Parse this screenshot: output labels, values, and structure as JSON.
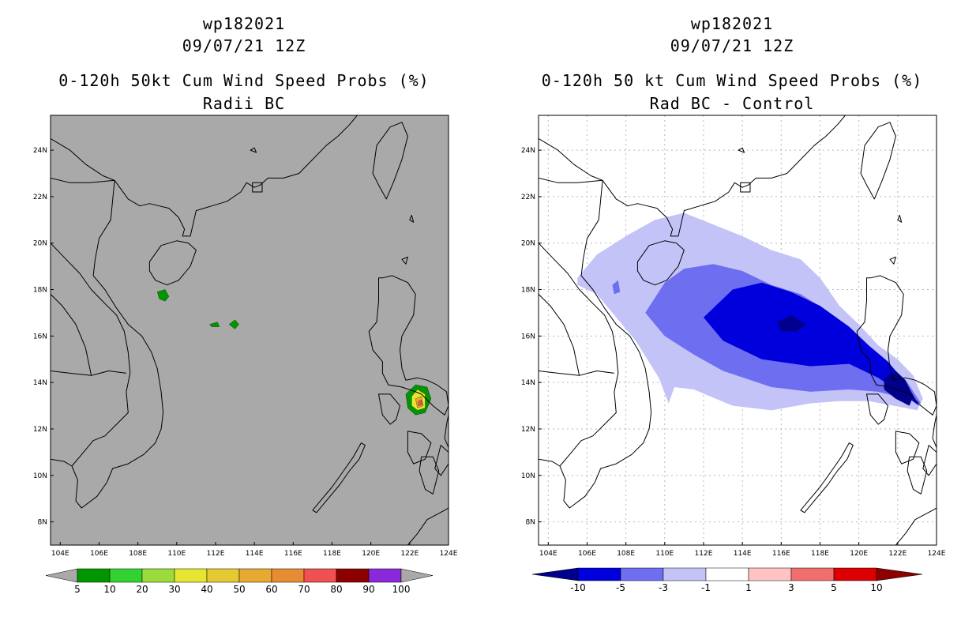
{
  "colors": {
    "land_gray": "#a9a9a9",
    "coast": "#000000",
    "grid": "#b8b8b8"
  },
  "panels": [
    {
      "title_line1": "wp182021",
      "title_line2": "09/07/21 12Z",
      "title_line3": "0-120h 50kt Cum Wind Speed Probs (%)",
      "title_line4": "Radii BC",
      "colorbar": {
        "labels": [
          "5",
          "10",
          "20",
          "30",
          "40",
          "50",
          "60",
          "70",
          "80",
          "90",
          "100"
        ],
        "colors": [
          "#009600",
          "#32d232",
          "#9bdc3c",
          "#e6e632",
          "#e6c832",
          "#e6aa32",
          "#e68c32",
          "#f05050",
          "#8c0000",
          "#8c28dc"
        ],
        "end_color": "#a9a9a9"
      }
    },
    {
      "title_line1": "wp182021",
      "title_line2": "09/07/21 12Z",
      "title_line3": "0-120h 50 kt Cum Wind Speed Probs (%)",
      "title_line4": "Rad BC - Control",
      "colorbar": {
        "labels": [
          "-10",
          "-5",
          "-3",
          "-1",
          "1",
          "3",
          "5",
          "10"
        ],
        "colors": [
          "#0000dc",
          "#6e6ef0",
          "#c3c3f8",
          "#ffffff",
          "#ffc3c3",
          "#f06e6e",
          "#dc0000"
        ],
        "end_low_color": "#00008c",
        "end_high_color": "#8c0000"
      }
    }
  ],
  "chart_data": {
    "type": "map",
    "lon_range": [
      103.5,
      124
    ],
    "lat_range": [
      7,
      25.5
    ],
    "lon_ticks": [
      "104E",
      "106E",
      "108E",
      "110E",
      "112E",
      "114E",
      "116E",
      "118E",
      "120E",
      "122E",
      "124E"
    ],
    "lat_ticks": [
      "8N",
      "10N",
      "12N",
      "14N",
      "16N",
      "18N",
      "20N",
      "22N",
      "24N"
    ],
    "left_prob_areas": [
      {
        "level": "5-10",
        "polygon": [
          [
            109.0,
            17.9
          ],
          [
            109.4,
            18.0
          ],
          [
            109.6,
            17.7
          ],
          [
            109.4,
            17.5
          ],
          [
            109.1,
            17.6
          ]
        ]
      },
      {
        "level": "5-10",
        "polygon": [
          [
            111.7,
            16.5
          ],
          [
            112.1,
            16.6
          ],
          [
            112.2,
            16.4
          ],
          [
            111.8,
            16.4
          ]
        ]
      },
      {
        "level": "5-10",
        "polygon": [
          [
            112.7,
            16.5
          ],
          [
            113.0,
            16.7
          ],
          [
            113.2,
            16.5
          ],
          [
            113.0,
            16.3
          ]
        ]
      },
      {
        "level": "5-10",
        "polygon": [
          [
            121.8,
            13.5
          ],
          [
            122.3,
            13.9
          ],
          [
            122.9,
            13.8
          ],
          [
            123.1,
            13.3
          ],
          [
            122.8,
            12.7
          ],
          [
            122.3,
            12.6
          ],
          [
            121.9,
            12.9
          ]
        ]
      },
      {
        "level": "20-30",
        "polygon": [
          [
            122.1,
            13.4
          ],
          [
            122.4,
            13.7
          ],
          [
            122.8,
            13.5
          ],
          [
            122.8,
            12.9
          ],
          [
            122.4,
            12.8
          ],
          [
            122.1,
            13.0
          ]
        ]
      },
      {
        "level": "40-50",
        "polygon": [
          [
            122.3,
            13.3
          ],
          [
            122.6,
            13.4
          ],
          [
            122.7,
            13.0
          ],
          [
            122.4,
            12.9
          ]
        ]
      },
      {
        "level": "60-70",
        "polygon": [
          [
            122.45,
            13.2
          ],
          [
            122.6,
            13.25
          ],
          [
            122.65,
            13.05
          ],
          [
            122.45,
            13.0
          ]
        ]
      }
    ],
    "right_diff_areas": [
      {
        "level": "-3 to -1",
        "polygon": [
          [
            105.5,
            18.5
          ],
          [
            106.5,
            19.5
          ],
          [
            108.0,
            20.3
          ],
          [
            109.5,
            21.0
          ],
          [
            111.0,
            21.3
          ],
          [
            112.5,
            20.8
          ],
          [
            114.0,
            20.3
          ],
          [
            115.5,
            19.7
          ],
          [
            117.0,
            19.3
          ],
          [
            118.0,
            18.5
          ],
          [
            119.0,
            17.3
          ],
          [
            120.0,
            16.5
          ],
          [
            121.0,
            15.6
          ],
          [
            122.0,
            15.0
          ],
          [
            122.8,
            14.3
          ],
          [
            123.3,
            13.3
          ],
          [
            123.0,
            12.8
          ],
          [
            121.8,
            13.0
          ],
          [
            120.5,
            13.2
          ],
          [
            119.0,
            13.2
          ],
          [
            117.5,
            13.1
          ],
          [
            115.5,
            12.8
          ],
          [
            113.5,
            13.0
          ],
          [
            111.5,
            13.7
          ],
          [
            110.5,
            13.8
          ],
          [
            110.2,
            13.1
          ],
          [
            109.7,
            14.2
          ],
          [
            108.5,
            15.8
          ],
          [
            107.5,
            16.8
          ],
          [
            106.5,
            17.8
          ],
          [
            105.5,
            18.2
          ]
        ]
      },
      {
        "level": "-5 to -3",
        "polygon": [
          [
            109.0,
            17.0
          ],
          [
            110.0,
            18.3
          ],
          [
            111.0,
            18.9
          ],
          [
            112.5,
            19.1
          ],
          [
            114.0,
            18.8
          ],
          [
            115.5,
            18.2
          ],
          [
            117.0,
            17.8
          ],
          [
            118.5,
            17.0
          ],
          [
            119.5,
            16.3
          ],
          [
            120.5,
            15.4
          ],
          [
            121.5,
            14.8
          ],
          [
            122.5,
            14.0
          ],
          [
            123.2,
            13.1
          ],
          [
            122.4,
            13.3
          ],
          [
            121.0,
            13.6
          ],
          [
            119.5,
            13.7
          ],
          [
            117.5,
            13.6
          ],
          [
            115.5,
            13.8
          ],
          [
            113.0,
            14.5
          ],
          [
            111.5,
            15.2
          ],
          [
            110.0,
            16.0
          ]
        ]
      },
      {
        "level": "-10 to -5",
        "polygon": [
          [
            112.0,
            16.8
          ],
          [
            113.5,
            18.0
          ],
          [
            115.0,
            18.3
          ],
          [
            116.5,
            17.9
          ],
          [
            118.0,
            17.3
          ],
          [
            119.5,
            16.4
          ],
          [
            120.5,
            15.6
          ],
          [
            121.5,
            14.9
          ],
          [
            122.5,
            13.9
          ],
          [
            123.1,
            13.0
          ],
          [
            122.1,
            13.6
          ],
          [
            121.0,
            14.2
          ],
          [
            119.5,
            14.8
          ],
          [
            117.5,
            14.7
          ],
          [
            115.0,
            15.0
          ],
          [
            113.0,
            15.8
          ]
        ]
      },
      {
        "level": "< -10",
        "polygon": [
          [
            115.8,
            16.6
          ],
          [
            116.5,
            16.9
          ],
          [
            117.3,
            16.5
          ],
          [
            116.8,
            16.2
          ],
          [
            116.0,
            16.2
          ]
        ]
      },
      {
        "level": "< -10",
        "polygon": [
          [
            121.3,
            14.2
          ],
          [
            121.9,
            14.5
          ],
          [
            122.4,
            14.1
          ],
          [
            122.8,
            13.4
          ],
          [
            122.6,
            13.0
          ],
          [
            121.9,
            13.3
          ],
          [
            121.3,
            13.7
          ]
        ]
      }
    ]
  }
}
